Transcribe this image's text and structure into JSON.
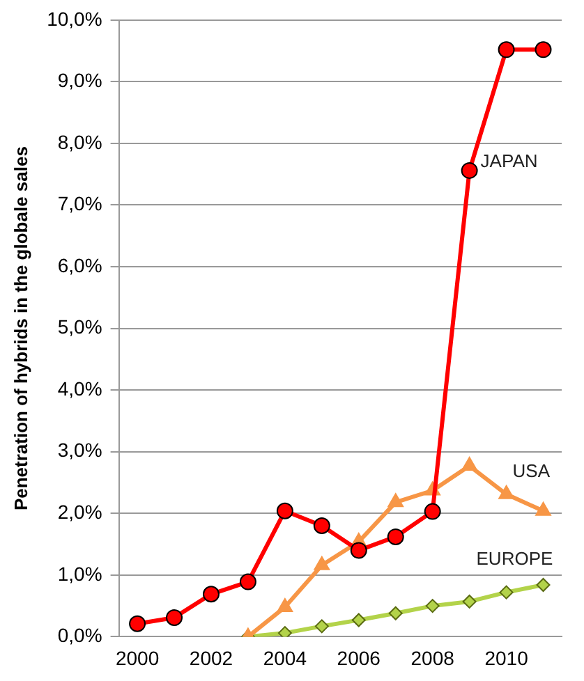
{
  "chart_data": {
    "type": "line",
    "ylabel": "Penetration of hybrids in the globale sales",
    "xlim": [
      1999.5,
      2011.5
    ],
    "xticks": [
      2000,
      2002,
      2004,
      2006,
      2008,
      2010
    ],
    "ylim": [
      0,
      10
    ],
    "yticks": [
      {
        "value": 0,
        "label": "0,0%"
      },
      {
        "value": 1,
        "label": "1,0%"
      },
      {
        "value": 2,
        "label": "2,0%"
      },
      {
        "value": 3,
        "label": "3,0%"
      },
      {
        "value": 4,
        "label": "4,0%"
      },
      {
        "value": 5,
        "label": "5,0%"
      },
      {
        "value": 6,
        "label": "6,0%"
      },
      {
        "value": 7,
        "label": "7,0%"
      },
      {
        "value": 8,
        "label": "8,0%"
      },
      {
        "value": 9,
        "label": "9,0%"
      },
      {
        "value": 10,
        "label": "10,0%"
      }
    ],
    "grid": "y",
    "legend": false,
    "series": [
      {
        "name": "JAPAN",
        "color": "#ff0000",
        "marker": "circle",
        "x": [
          2000,
          2001,
          2002,
          2003,
          2004,
          2005,
          2006,
          2007,
          2008,
          2009,
          2010,
          2011
        ],
        "values": [
          0.21,
          0.31,
          0.69,
          0.89,
          2.04,
          1.8,
          1.4,
          1.62,
          2.03,
          7.56,
          9.52,
          9.52
        ]
      },
      {
        "name": "USA",
        "color": "#f79646",
        "marker": "triangle",
        "x": [
          2003,
          2004,
          2005,
          2006,
          2007,
          2008,
          2009,
          2010,
          2011
        ],
        "values": [
          0,
          0.48,
          1.16,
          1.54,
          2.18,
          2.37,
          2.77,
          2.31,
          2.04
        ]
      },
      {
        "name": "EUROPE",
        "color": "#b3d34a",
        "marker": "diamond",
        "x": [
          2003,
          2004,
          2005,
          2006,
          2007,
          2008,
          2009,
          2010,
          2011
        ],
        "values": [
          0,
          0.06,
          0.17,
          0.27,
          0.38,
          0.5,
          0.57,
          0.72,
          0.84
        ]
      }
    ]
  }
}
